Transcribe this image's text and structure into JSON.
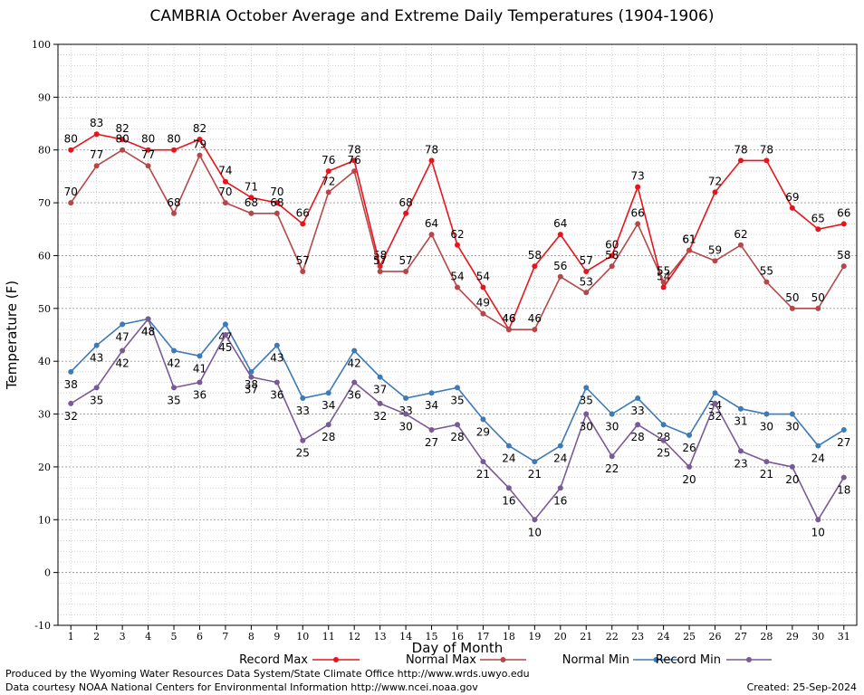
{
  "chart_data": {
    "type": "line",
    "title": "CAMBRIA October Average and Extreme Daily Temperatures (1904-1906)",
    "xlabel": "Day of Month",
    "ylabel": "Temperature (F)",
    "ylim": [
      -10,
      100
    ],
    "xlim": [
      1,
      31
    ],
    "yticks": [
      -10,
      0,
      10,
      20,
      30,
      40,
      50,
      60,
      70,
      80,
      90,
      100
    ],
    "x": [
      1,
      2,
      3,
      4,
      5,
      6,
      7,
      8,
      9,
      10,
      11,
      12,
      13,
      14,
      15,
      16,
      17,
      18,
      19,
      20,
      21,
      22,
      23,
      24,
      25,
      26,
      27,
      28,
      29,
      30,
      31
    ],
    "grid": true,
    "legend_position": "bottom",
    "series": [
      {
        "name": "Record Max",
        "color": "#e8141c",
        "values": [
          80,
          83,
          82,
          80,
          80,
          82,
          74,
          71,
          70,
          66,
          76,
          78,
          58,
          68,
          78,
          62,
          54,
          46,
          58,
          64,
          57,
          60,
          73,
          54,
          61,
          72,
          78,
          78,
          69,
          65,
          66
        ]
      },
      {
        "name": "Normal Max",
        "color": "#b5474a",
        "values": [
          70,
          77,
          80,
          77,
          68,
          79,
          70,
          68,
          68,
          57,
          72,
          76,
          57,
          57,
          64,
          54,
          49,
          46,
          46,
          56,
          53,
          58,
          66,
          55,
          61,
          59,
          62,
          55,
          50,
          50,
          58
        ]
      },
      {
        "name": "Normal Min",
        "color": "#3d7ab8",
        "values": [
          38,
          43,
          47,
          48,
          42,
          41,
          47,
          38,
          43,
          33,
          34,
          42,
          37,
          33,
          34,
          35,
          29,
          24,
          21,
          24,
          35,
          30,
          33,
          28,
          26,
          34,
          31,
          30,
          30,
          24,
          27
        ]
      },
      {
        "name": "Record Min",
        "color": "#7a5a96",
        "values": [
          32,
          35,
          42,
          48,
          35,
          36,
          45,
          37,
          36,
          25,
          28,
          36,
          32,
          30,
          27,
          28,
          21,
          16,
          10,
          16,
          30,
          22,
          28,
          25,
          20,
          32,
          23,
          21,
          20,
          10,
          18
        ]
      }
    ]
  },
  "footer": {
    "produced_by": "Produced by the Wyoming Water Resources Data System/State Climate Office http://www.wrds.uwyo.edu",
    "courtesy": "Data courtesy NOAA National Centers for Environmental Information http://www.ncei.noaa.gov",
    "created": "Created:  25-Sep-2024"
  }
}
